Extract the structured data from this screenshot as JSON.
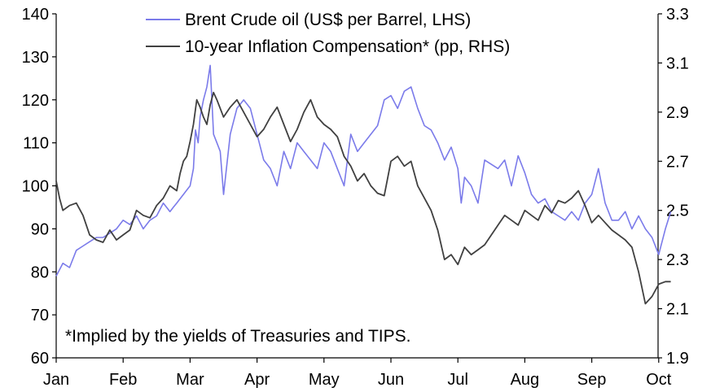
{
  "chart_data": {
    "type": "line",
    "note": "*Implied by the yields of Treasuries and TIPS.",
    "x_labels": [
      "Jan",
      "Feb",
      "Mar",
      "Apr",
      "May",
      "Jun",
      "Jul",
      "Aug",
      "Sep",
      "Oct"
    ],
    "y_left": {
      "range": [
        60,
        140
      ],
      "ticks": [
        "60",
        "70",
        "80",
        "90",
        "100",
        "110",
        "120",
        "130",
        "140"
      ]
    },
    "y_right": {
      "range": [
        1.9,
        3.3
      ],
      "ticks": [
        "1.9",
        "2.1",
        "2.3",
        "2.5",
        "2.7",
        "2.9",
        "3.1",
        "3.3"
      ]
    },
    "legend_position": "top",
    "series": [
      {
        "name": "Brent Crude oil (US$ per Barrel, LHS)",
        "axis": "left",
        "color": "#7b7bea",
        "x": [
          1.0,
          1.1,
          1.2,
          1.3,
          1.4,
          1.5,
          1.6,
          1.7,
          1.8,
          1.9,
          2.0,
          2.1,
          2.2,
          2.3,
          2.4,
          2.5,
          2.6,
          2.7,
          2.75,
          2.8,
          2.85,
          2.9,
          2.95,
          3.0,
          3.05,
          3.08,
          3.12,
          3.15,
          3.2,
          3.25,
          3.3,
          3.35,
          3.4,
          3.45,
          3.5,
          3.6,
          3.7,
          3.8,
          3.9,
          4.0,
          4.1,
          4.2,
          4.3,
          4.4,
          4.5,
          4.6,
          4.7,
          4.8,
          4.9,
          5.0,
          5.1,
          5.2,
          5.3,
          5.4,
          5.5,
          5.6,
          5.7,
          5.8,
          5.9,
          6.0,
          6.1,
          6.2,
          6.3,
          6.4,
          6.5,
          6.6,
          6.7,
          6.8,
          6.9,
          7.0,
          7.05,
          7.1,
          7.2,
          7.3,
          7.4,
          7.5,
          7.6,
          7.7,
          7.8,
          7.9,
          8.0,
          8.1,
          8.2,
          8.3,
          8.4,
          8.5,
          8.6,
          8.7,
          8.8,
          8.9,
          9.0,
          9.1,
          9.2,
          9.3,
          9.4,
          9.5,
          9.6,
          9.7,
          9.8,
          9.9,
          10.0,
          10.1,
          10.18
        ],
        "y": [
          79,
          82,
          81,
          85,
          86,
          87,
          88,
          88,
          89,
          90,
          92,
          91,
          93,
          90,
          92,
          93,
          96,
          94,
          95,
          96,
          97,
          98,
          99,
          100,
          104,
          113,
          110,
          116,
          120,
          123,
          128,
          112,
          110,
          108,
          98,
          112,
          118,
          120,
          118,
          112,
          106,
          104,
          100,
          108,
          104,
          110,
          108,
          106,
          104,
          110,
          108,
          104,
          100,
          112,
          108,
          110,
          112,
          114,
          120,
          121,
          118,
          122,
          123,
          118,
          114,
          113,
          110,
          106,
          109,
          104,
          96,
          102,
          100,
          96,
          106,
          105,
          104,
          106,
          100,
          107,
          103,
          98,
          96,
          97,
          94,
          93,
          92,
          94,
          92,
          96,
          98,
          104,
          96,
          92,
          92,
          94,
          90,
          93,
          90,
          88,
          84,
          90,
          94
        ]
      },
      {
        "name": "10-year Inflation Compensation* (pp, RHS)",
        "axis": "right",
        "color": "#404040",
        "x": [
          1.0,
          1.05,
          1.1,
          1.2,
          1.3,
          1.4,
          1.5,
          1.6,
          1.7,
          1.8,
          1.9,
          2.0,
          2.1,
          2.2,
          2.3,
          2.4,
          2.5,
          2.6,
          2.7,
          2.8,
          2.85,
          2.9,
          2.95,
          3.0,
          3.05,
          3.1,
          3.15,
          3.2,
          3.25,
          3.3,
          3.35,
          3.4,
          3.5,
          3.6,
          3.7,
          3.8,
          3.9,
          4.0,
          4.1,
          4.2,
          4.3,
          4.4,
          4.5,
          4.6,
          4.7,
          4.8,
          4.9,
          5.0,
          5.1,
          5.2,
          5.3,
          5.4,
          5.5,
          5.6,
          5.7,
          5.8,
          5.9,
          6.0,
          6.1,
          6.2,
          6.3,
          6.4,
          6.5,
          6.6,
          6.7,
          6.8,
          6.9,
          7.0,
          7.1,
          7.2,
          7.3,
          7.4,
          7.5,
          7.6,
          7.7,
          7.8,
          7.9,
          8.0,
          8.1,
          8.2,
          8.3,
          8.4,
          8.5,
          8.6,
          8.7,
          8.8,
          8.9,
          9.0,
          9.1,
          9.2,
          9.3,
          9.4,
          9.5,
          9.6,
          9.7,
          9.8,
          9.9,
          10.0,
          10.1,
          10.18
        ],
        "y": [
          2.62,
          2.55,
          2.5,
          2.52,
          2.53,
          2.48,
          2.4,
          2.38,
          2.37,
          2.42,
          2.38,
          2.4,
          2.42,
          2.5,
          2.48,
          2.47,
          2.52,
          2.55,
          2.6,
          2.58,
          2.65,
          2.7,
          2.72,
          2.78,
          2.85,
          2.95,
          2.92,
          2.88,
          2.85,
          2.93,
          2.98,
          2.95,
          2.88,
          2.92,
          2.95,
          2.9,
          2.85,
          2.8,
          2.83,
          2.88,
          2.92,
          2.85,
          2.78,
          2.83,
          2.9,
          2.95,
          2.88,
          2.85,
          2.83,
          2.8,
          2.72,
          2.68,
          2.62,
          2.65,
          2.6,
          2.57,
          2.56,
          2.7,
          2.72,
          2.68,
          2.7,
          2.6,
          2.55,
          2.5,
          2.42,
          2.3,
          2.32,
          2.28,
          2.35,
          2.32,
          2.34,
          2.36,
          2.4,
          2.44,
          2.48,
          2.46,
          2.44,
          2.5,
          2.48,
          2.46,
          2.52,
          2.49,
          2.54,
          2.53,
          2.55,
          2.58,
          2.52,
          2.45,
          2.48,
          2.45,
          2.42,
          2.4,
          2.38,
          2.35,
          2.25,
          2.12,
          2.15,
          2.2,
          2.21,
          2.21
        ]
      }
    ]
  }
}
